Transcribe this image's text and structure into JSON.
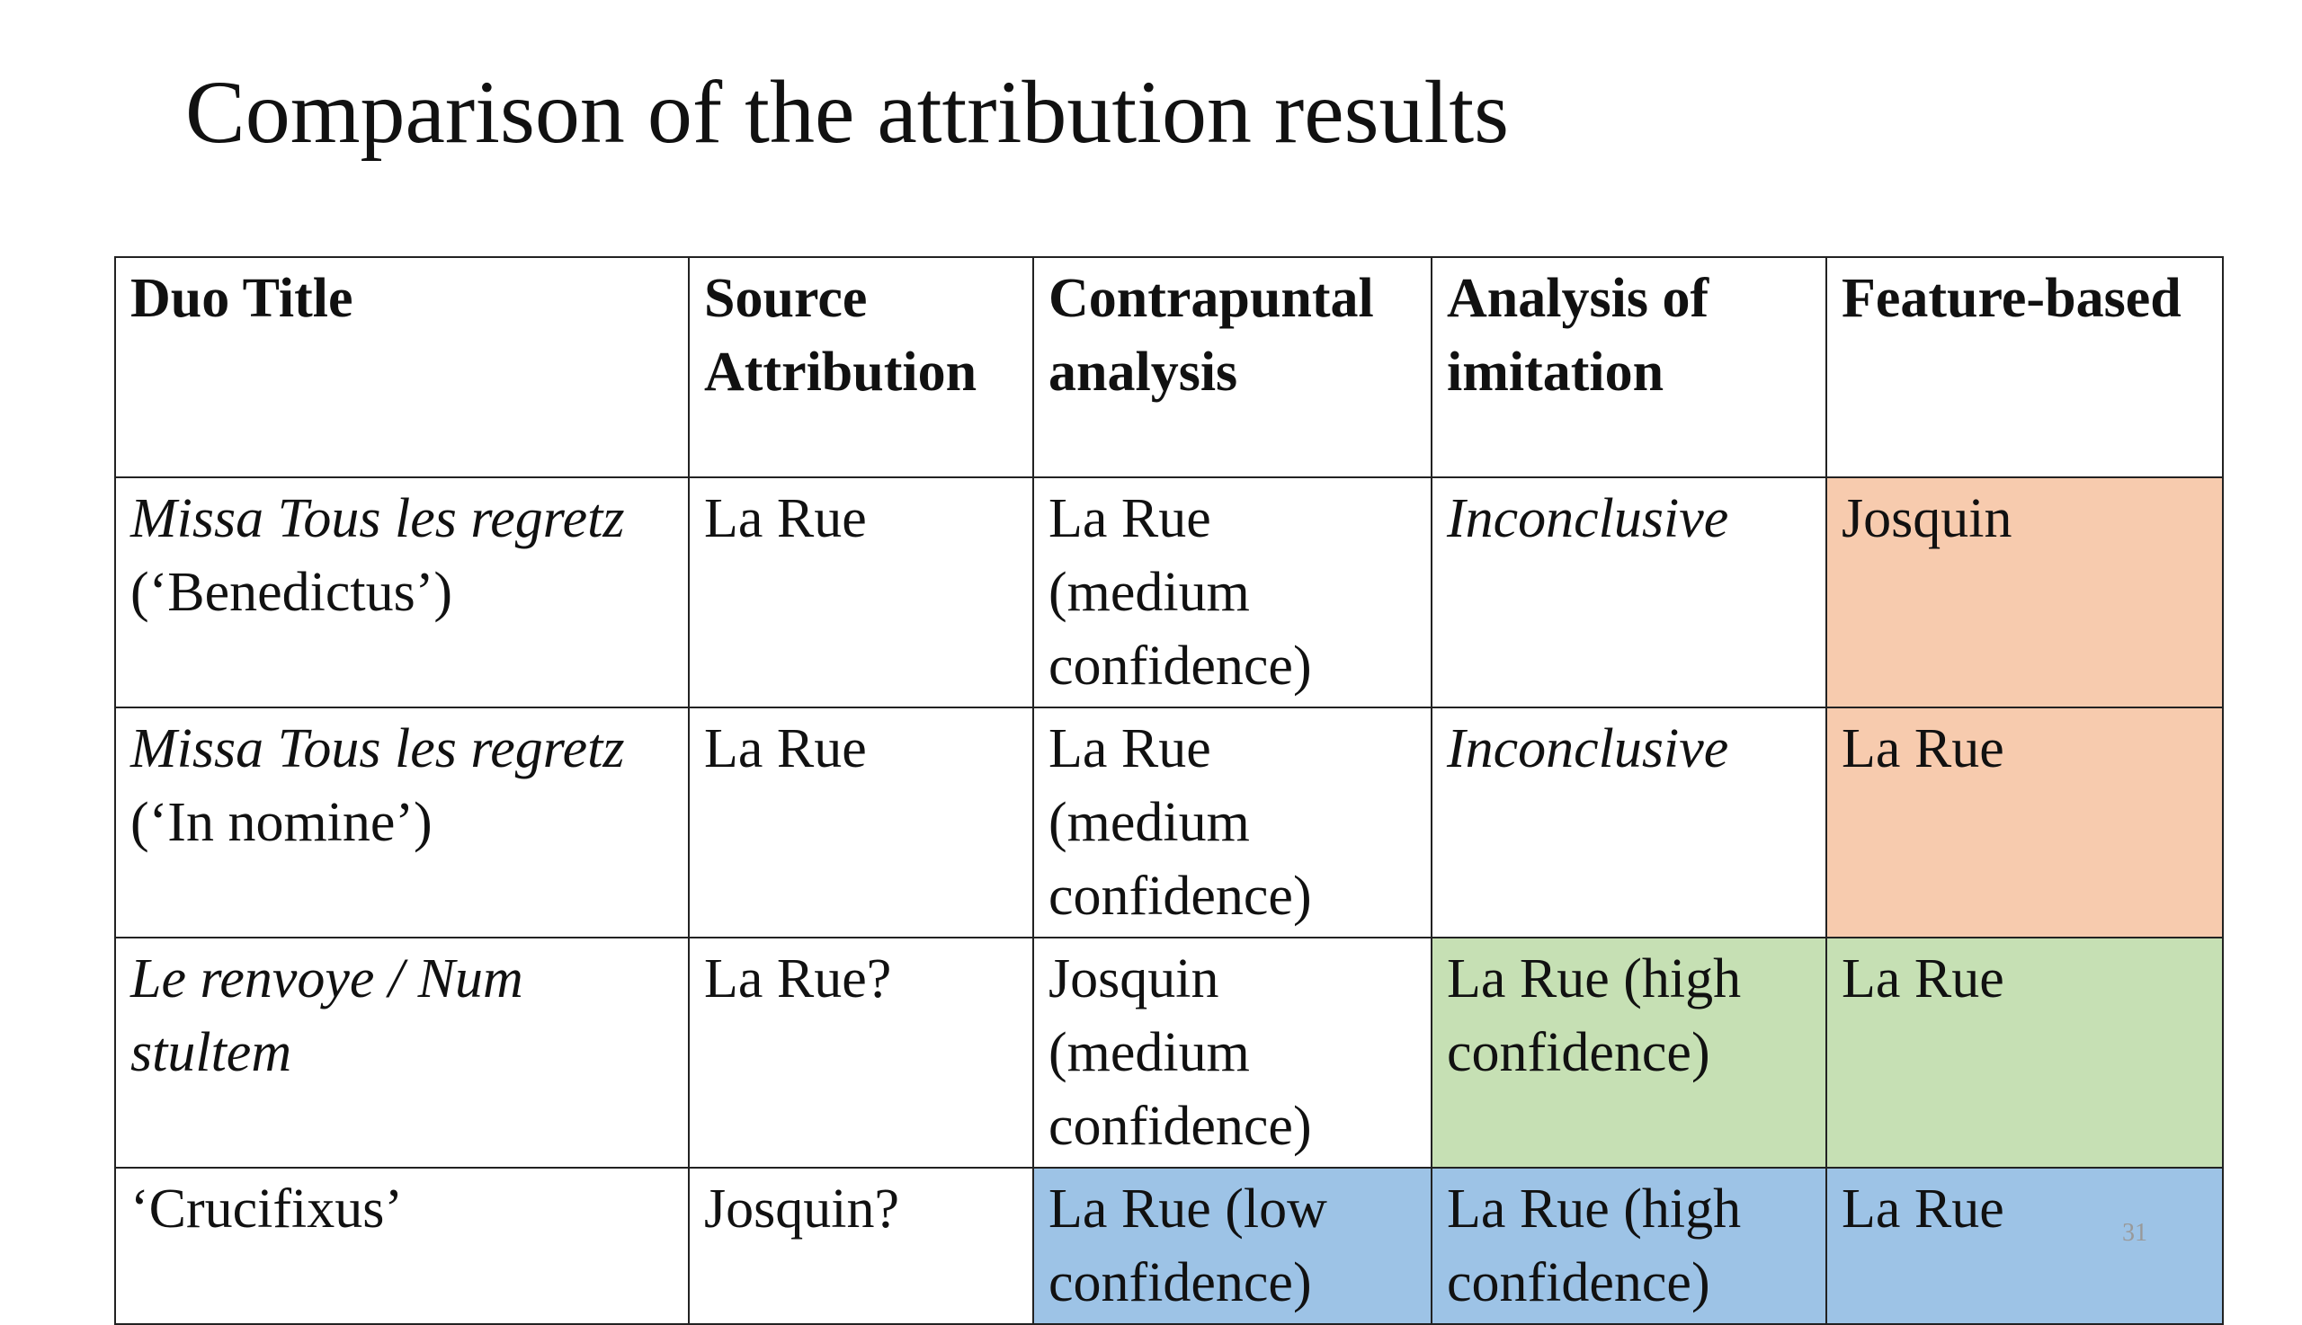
{
  "title": "Comparison of the attribution results",
  "page_number": "31",
  "table": {
    "header": [
      "Duo Title",
      "Source Attribution",
      "Contrapuntal analysis",
      "Analysis of imitation",
      "Feature-based"
    ],
    "rows": [
      [
        {
          "parts": [
            {
              "text": "Missa Tous les regretz",
              "italic": true
            },
            {
              "text": "(‘Benedictus’)"
            }
          ]
        },
        {
          "parts": [
            {
              "text": "La Rue"
            }
          ]
        },
        {
          "parts": [
            {
              "text": "La Rue"
            },
            {
              "text": "(medium"
            },
            {
              "text": "confidence)"
            }
          ]
        },
        {
          "parts": [
            {
              "text": "Inconclusive",
              "italic": true
            }
          ]
        },
        {
          "parts": [
            {
              "text": "Josquin"
            }
          ],
          "fill": "#f7cbae"
        }
      ],
      [
        {
          "parts": [
            {
              "text": "Missa Tous les regretz",
              "italic": true
            },
            {
              "text": "(‘In nomine’)"
            }
          ]
        },
        {
          "parts": [
            {
              "text": "La Rue"
            }
          ]
        },
        {
          "parts": [
            {
              "text": "La Rue"
            },
            {
              "text": "(medium"
            },
            {
              "text": "confidence)"
            }
          ]
        },
        {
          "parts": [
            {
              "text": "Inconclusive",
              "italic": true
            }
          ]
        },
        {
          "parts": [
            {
              "text": "La Rue"
            }
          ],
          "fill": "#f7cbae"
        }
      ],
      [
        {
          "parts": [
            {
              "text": "Le renvoye / Num",
              "italic": true
            },
            {
              "text": "stultem",
              "italic": true
            }
          ]
        },
        {
          "parts": [
            {
              "text": "La Rue?"
            }
          ]
        },
        {
          "parts": [
            {
              "text": "Josquin"
            },
            {
              "text": "(medium"
            },
            {
              "text": "confidence)"
            }
          ]
        },
        {
          "parts": [
            {
              "text": "La Rue (high"
            },
            {
              "text": "confidence)"
            }
          ],
          "fill": "#c6e0b4"
        },
        {
          "parts": [
            {
              "text": "La Rue"
            }
          ],
          "fill": "#c6e0b4"
        }
      ],
      [
        {
          "parts": [
            {
              "text": "‘Crucifixus’"
            }
          ]
        },
        {
          "parts": [
            {
              "text": "Josquin?"
            }
          ]
        },
        {
          "parts": [
            {
              "text": "La Rue (low"
            },
            {
              "text": "confidence)"
            }
          ],
          "fill": "#9dc3e6"
        },
        {
          "parts": [
            {
              "text": "La Rue (high"
            },
            {
              "text": "confidence)"
            }
          ],
          "fill": "#9dc3e6"
        },
        {
          "parts": [
            {
              "text": "La Rue"
            }
          ],
          "fill": "#9dc3e6"
        }
      ]
    ]
  }
}
